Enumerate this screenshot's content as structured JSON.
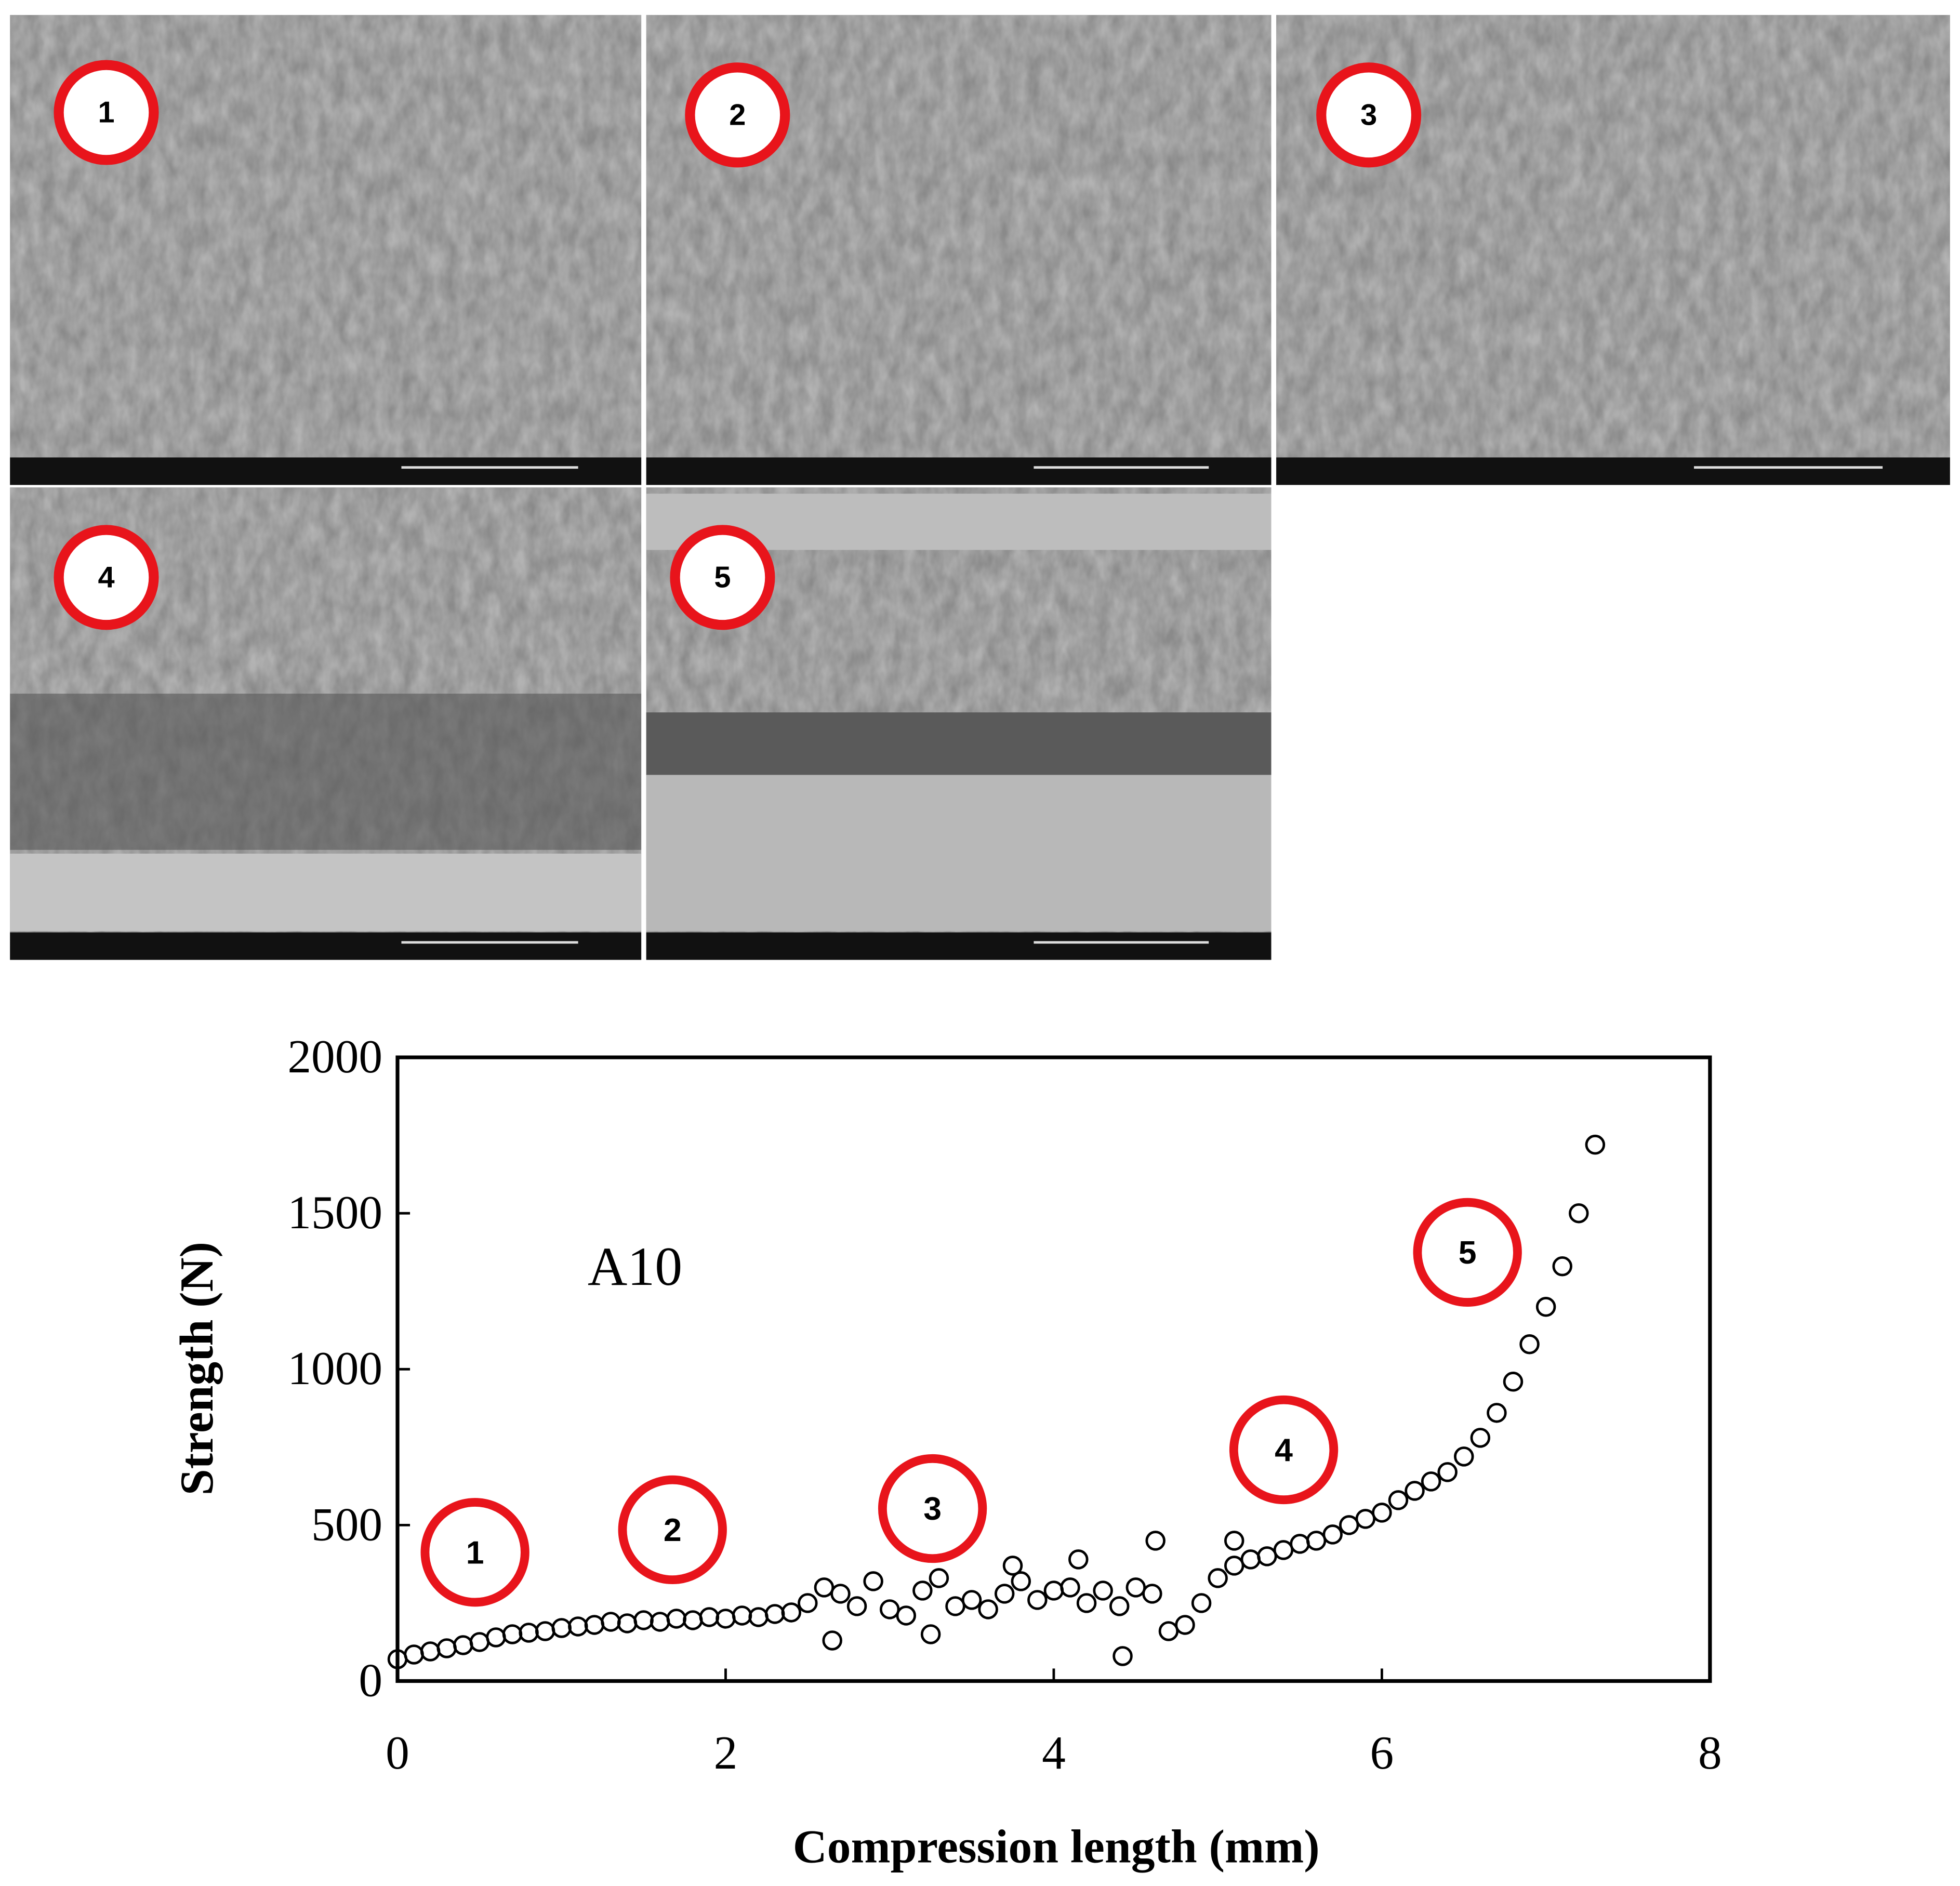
{
  "panels": [
    {
      "label": "1"
    },
    {
      "label": "2"
    },
    {
      "label": "3"
    },
    {
      "label": "4"
    },
    {
      "label": "5"
    }
  ],
  "chart_data": {
    "type": "scatter",
    "x_label": "Compression length (mm)",
    "y_label": "Strength (N)",
    "annotations": [
      "A10",
      "1",
      "2",
      "3",
      "4",
      "5"
    ],
    "annotation_color": "#e8141b",
    "color": "#000000",
    "xlim": [
      0,
      8
    ],
    "xticks": [
      0,
      2,
      4,
      6,
      8
    ],
    "ylim": [
      0,
      2000
    ],
    "yticks": [
      0,
      500,
      1000,
      1500,
      2000
    ],
    "x": [
      0,
      0.1,
      0.2,
      0.3,
      0.4,
      0.5,
      0.6,
      0.7,
      0.8,
      0.9,
      1.0,
      1.1,
      1.2,
      1.3,
      1.4,
      1.5,
      1.6,
      1.7,
      1.8,
      1.9,
      2.0,
      2.1,
      2.2,
      2.3,
      2.4,
      2.5,
      2.6,
      2.7,
      2.8,
      2.9,
      3.0,
      3.1,
      3.2,
      3.3,
      3.4,
      3.5,
      3.6,
      3.7,
      3.8,
      3.9,
      4.0,
      4.1,
      4.2,
      4.3,
      4.4,
      4.5,
      4.6,
      4.7,
      4.8,
      4.9,
      5.0,
      5.1,
      5.2,
      5.3,
      5.4,
      5.5,
      5.6,
      5.7,
      5.8,
      5.9,
      6.0,
      6.1,
      6.2,
      6.3,
      6.4,
      6.5,
      6.6,
      6.7,
      6.8,
      6.9,
      7.0,
      7.1,
      7.2,
      7.3,
      2.65,
      3.75,
      4.15,
      4.42,
      4.62,
      5.1,
      3.25
    ],
    "y": [
      70,
      85,
      95,
      105,
      115,
      125,
      140,
      150,
      155,
      160,
      170,
      175,
      180,
      190,
      185,
      195,
      190,
      200,
      195,
      205,
      200,
      210,
      205,
      215,
      220,
      250,
      300,
      280,
      240,
      320,
      230,
      210,
      290,
      330,
      240,
      260,
      230,
      280,
      320,
      260,
      290,
      300,
      250,
      290,
      240,
      300,
      280,
      160,
      180,
      250,
      330,
      370,
      390,
      400,
      420,
      440,
      450,
      470,
      500,
      520,
      540,
      580,
      610,
      640,
      670,
      720,
      780,
      860,
      960,
      1080,
      1200,
      1330,
      1500,
      1720,
      130,
      370,
      390,
      80,
      450,
      450,
      150
    ]
  }
}
